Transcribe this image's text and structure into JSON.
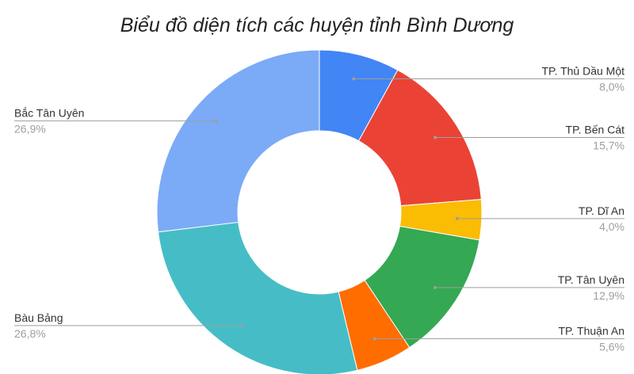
{
  "chart_data": {
    "type": "pie",
    "donut": true,
    "title": "Biểu đồ diện tích các huyện tỉnh Bình Dương",
    "categories": [
      "TP. Thủ Dầu Một",
      "TP. Bến Cát",
      "TP. Dĩ An",
      "TP. Tân Uyên",
      "TP. Thuận An",
      "Bàu Bảng",
      "Bắc Tân Uyên"
    ],
    "values": [
      8.0,
      15.7,
      4.0,
      12.9,
      5.6,
      26.8,
      26.9
    ],
    "value_labels": [
      "8,0%",
      "15,7%",
      "4,0%",
      "12,9%",
      "5,6%",
      "26,8%",
      "26,9%"
    ],
    "colors": [
      "#4285f4",
      "#ea4335",
      "#fbbc04",
      "#34a853",
      "#ff6d01",
      "#46bdc6",
      "#7baaf7"
    ],
    "legend": "labels-outside"
  }
}
